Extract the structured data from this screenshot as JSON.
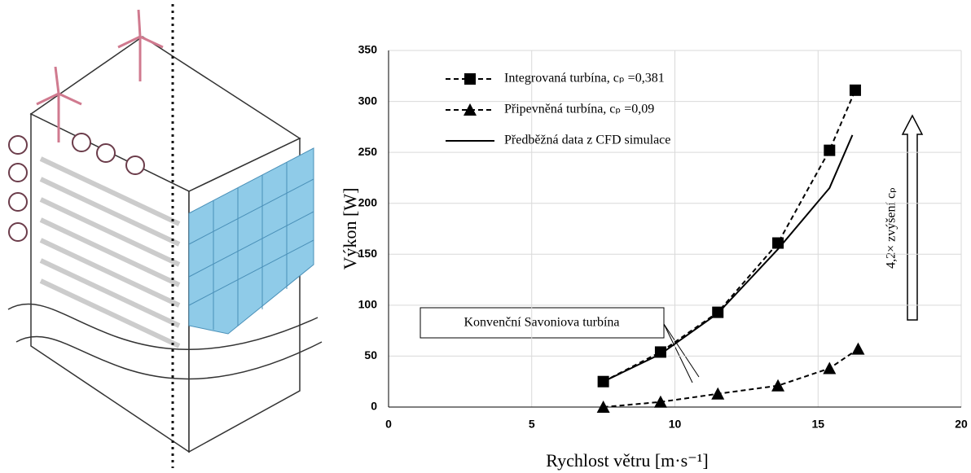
{
  "chart_data": {
    "type": "line",
    "x_label": "Rychlost větru [m·s⁻¹]",
    "y_label": "Výkon [W]",
    "xlim": [
      0,
      20
    ],
    "xticks": [
      0,
      5,
      10,
      15,
      20
    ],
    "ylim": [
      0,
      350
    ],
    "yticks": [
      0,
      50,
      100,
      150,
      200,
      250,
      300,
      350
    ],
    "grid": true,
    "legend": "upper-left",
    "series": [
      {
        "name": "Integrovaná turbína, cₚ =0,381",
        "color": "#000000",
        "marker": "square",
        "dash": "dashed",
        "x": [
          7.5,
          9.5,
          11.5,
          13.6,
          15.4,
          16.3
        ],
        "values": [
          25,
          54,
          93,
          161,
          252,
          311
        ]
      },
      {
        "name": "Připevněná turbína, cₚ =0,09",
        "color": "#000000",
        "marker": "triangle",
        "dash": "dashed",
        "x": [
          7.5,
          9.5,
          11.5,
          13.6,
          15.4,
          16.4
        ],
        "values": [
          0,
          5,
          13,
          21,
          38,
          57
        ]
      },
      {
        "name": "Předběžná data z CFD simulace",
        "color": "#000000",
        "marker": "none",
        "dash": "solid",
        "x": [
          7.5,
          9.5,
          11.5,
          13.6,
          15.4,
          16.2
        ],
        "values": [
          25,
          52,
          92,
          155,
          215,
          267
        ]
      }
    ],
    "annotations": [
      "Konvenční Savoniova turbína",
      "4,2× zvýšení cₚ"
    ]
  }
}
